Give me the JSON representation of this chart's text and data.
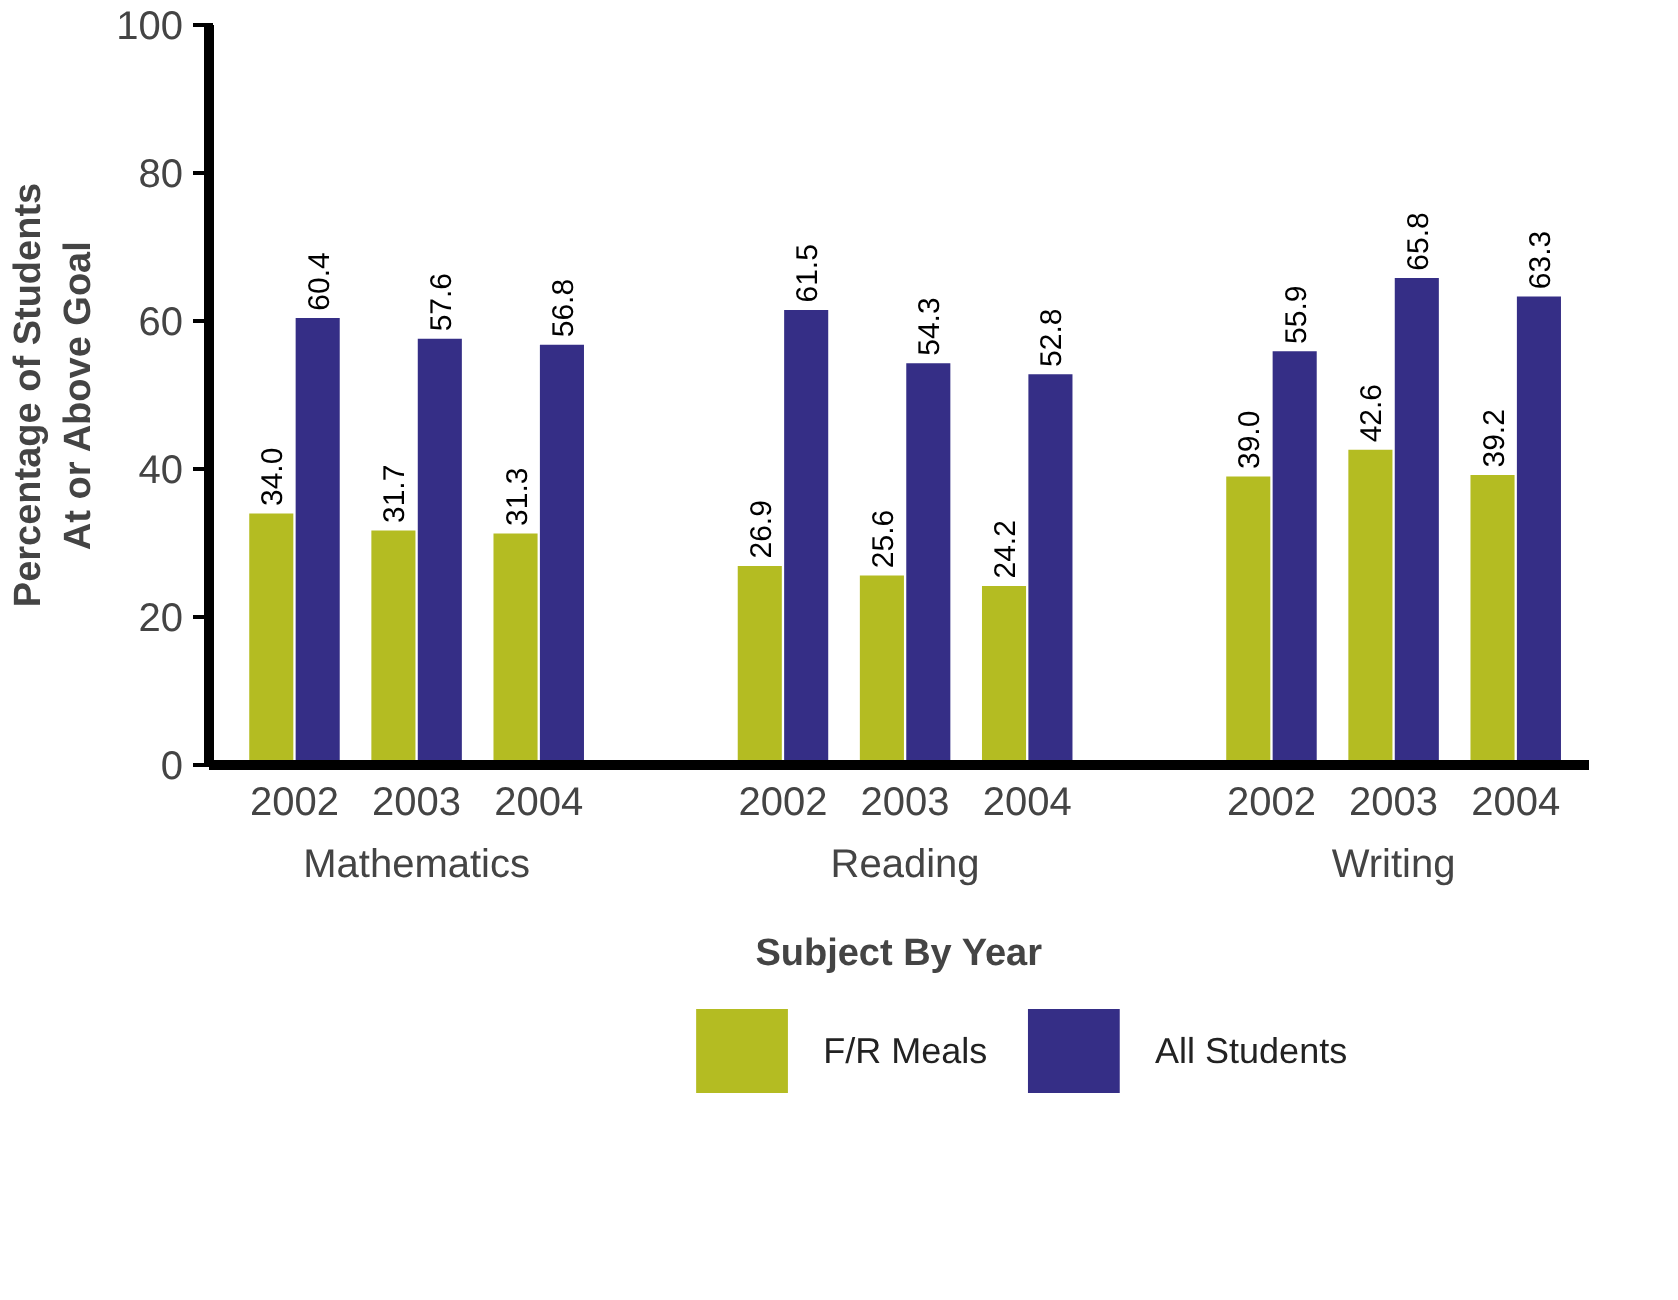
{
  "chart_data": {
    "type": "bar",
    "xlabel": "Subject By Year",
    "ylabel": "Percentage of Students\nAt or Above Goal",
    "categories": [
      "2002",
      "2003",
      "2004",
      "2002",
      "2003",
      "2004",
      "2002",
      "2003",
      "2004"
    ],
    "annotations": [
      "Mathematics",
      "Reading",
      "Writing"
    ],
    "series": [
      {
        "name": "F/R Meals",
        "color": "#b4bc22",
        "values": [
          34,
          31.7,
          31.3,
          26.9,
          25.6,
          24.2,
          39,
          42.6,
          39.2
        ],
        "value_labels": [
          "34.0",
          "31.7",
          "31.3",
          "26.9",
          "25.6",
          "24.2",
          "39.0",
          "42.6",
          "39.2"
        ]
      },
      {
        "name": "All Students",
        "color": "#352e86",
        "values": [
          60.4,
          57.6,
          56.8,
          61.5,
          54.3,
          52.8,
          55.9,
          65.8,
          63.3
        ],
        "value_labels": [
          "60.4",
          "57.6",
          "56.8",
          "61.5",
          "54.3",
          "52.8",
          "55.9",
          "65.8",
          "63.3"
        ]
      }
    ],
    "ylim": [
      0,
      100
    ],
    "yticks": [
      0,
      20,
      40,
      60,
      80,
      100
    ],
    "grid": false,
    "legend": "bottom"
  }
}
